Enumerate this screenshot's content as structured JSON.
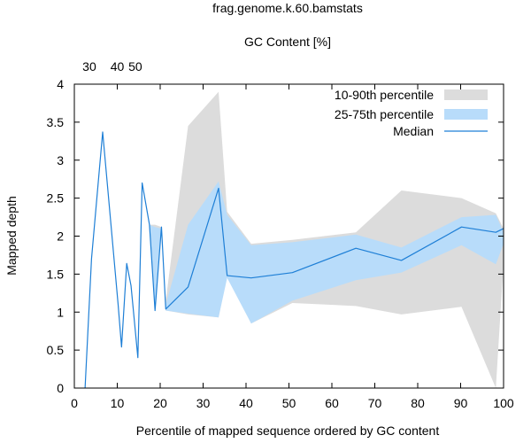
{
  "chart_data": {
    "type": "area",
    "title": "frag.genome.k.60.bamstats",
    "top_axis_label": "GC Content [%]",
    "xlabel": "Percentile of mapped sequence ordered by GC content",
    "ylabel": "Mapped depth",
    "xlim": [
      0,
      100
    ],
    "ylim": [
      0,
      4
    ],
    "x_ticks": [
      "0",
      "10",
      "20",
      "30",
      "40",
      "50",
      "60",
      "70",
      "80",
      "90",
      "100"
    ],
    "y_ticks": [
      "0",
      "0.5",
      "1",
      "1.5",
      "2",
      "2.5",
      "3",
      "3.5",
      "4"
    ],
    "top_ticks": [
      {
        "label": "30",
        "x": 3.5
      },
      {
        "label": "40",
        "x": 10.0
      },
      {
        "label": "50",
        "x": 14.2
      }
    ],
    "grid": false,
    "legend_position": "top-right",
    "series": [
      {
        "name": "10-90th percentile",
        "kind": "band",
        "color": "#dcdcdc",
        "x": [
          15.5,
          17.5,
          18.8,
          20.3,
          21.3,
          26.5,
          33.6,
          35.6,
          41.2,
          50.8,
          65.6,
          76.2,
          90.2,
          98.2,
          100
        ],
        "upper": [
          2.7,
          2.15,
          2.15,
          2.12,
          1.15,
          3.45,
          3.9,
          2.32,
          1.9,
          1.95,
          2.05,
          2.6,
          2.5,
          2.3,
          2.1
        ],
        "lower": [
          2.7,
          2.15,
          1.02,
          2.12,
          1.02,
          0.97,
          0.93,
          1.48,
          0.85,
          1.12,
          1.08,
          0.97,
          1.07,
          0.0,
          1.65
        ]
      },
      {
        "name": "25-75th percentile",
        "kind": "band",
        "color": "#b8dcfa",
        "x": [
          15.5,
          17.5,
          18.8,
          20.3,
          21.3,
          26.5,
          33.6,
          35.6,
          41.2,
          50.8,
          65.6,
          76.2,
          90.2,
          98.2,
          100
        ],
        "upper": [
          2.7,
          2.15,
          2.12,
          2.1,
          1.1,
          2.15,
          2.72,
          2.28,
          1.88,
          1.92,
          2.02,
          1.85,
          2.25,
          2.28,
          2.05
        ],
        "lower": [
          2.7,
          2.15,
          1.02,
          2.1,
          1.02,
          0.98,
          0.93,
          1.45,
          0.85,
          1.15,
          1.42,
          1.52,
          1.88,
          1.63,
          1.9
        ]
      },
      {
        "name": "Median",
        "kind": "line",
        "color": "#1e7fd6",
        "x": [
          2.5,
          4.0,
          6.6,
          10.2,
          11.0,
          12.2,
          13.2,
          14.8,
          15.8,
          17.5,
          18.8,
          20.3,
          21.3,
          26.5,
          33.6,
          35.6,
          41.2,
          50.8,
          65.6,
          76.2,
          90.2,
          98.2,
          100
        ],
        "y": [
          0.0,
          1.7,
          3.37,
          1.1,
          0.54,
          1.64,
          1.35,
          0.4,
          2.7,
          2.15,
          1.02,
          2.12,
          1.04,
          1.33,
          2.63,
          1.48,
          1.45,
          1.52,
          1.84,
          1.68,
          2.12,
          2.05,
          2.1
        ]
      }
    ]
  }
}
